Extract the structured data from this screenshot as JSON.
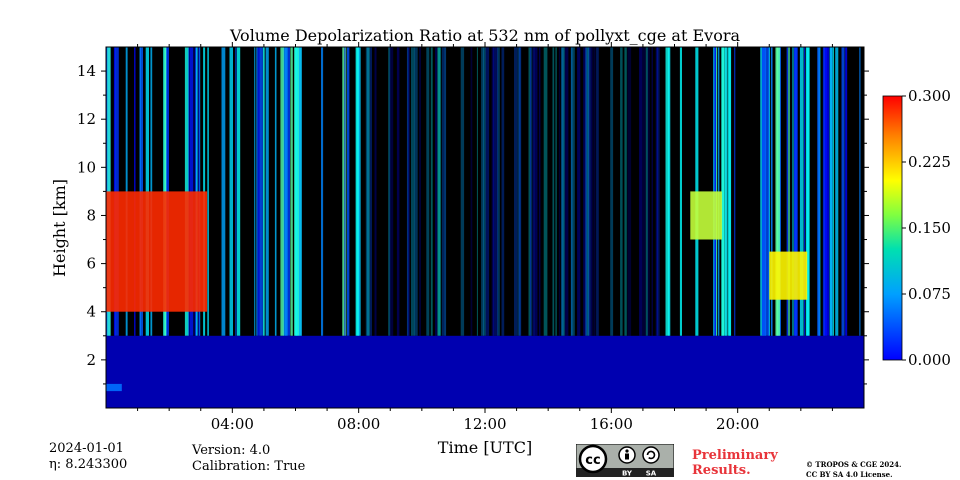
{
  "chart_data": {
    "type": "heatmap",
    "title": "Volume Depolarization Ratio at 532 nm of pollyxt_cge at Evora",
    "xlabel": "Time [UTC]",
    "ylabel": "Height [km]",
    "xlim_hours": [
      0,
      24
    ],
    "ylim_km": [
      0,
      15
    ],
    "x_ticks": [
      {
        "hour": 4,
        "label": "04:00"
      },
      {
        "hour": 8,
        "label": "08:00"
      },
      {
        "hour": 12,
        "label": "12:00"
      },
      {
        "hour": 16,
        "label": "16:00"
      },
      {
        "hour": 20,
        "label": "20:00"
      }
    ],
    "y_ticks": [
      {
        "value": 2,
        "label": "2"
      },
      {
        "value": 4,
        "label": "4"
      },
      {
        "value": 6,
        "label": "6"
      },
      {
        "value": 8,
        "label": "8"
      },
      {
        "value": 10,
        "label": "10"
      },
      {
        "value": 12,
        "label": "12"
      },
      {
        "value": 14,
        "label": "14"
      }
    ],
    "colorbar": {
      "range": [
        0.0,
        0.3
      ],
      "colormap": "jet",
      "ticks": [
        {
          "value": 0.0,
          "label": "0.000"
        },
        {
          "value": 0.075,
          "label": "0.075"
        },
        {
          "value": 0.15,
          "label": "0.150"
        },
        {
          "value": 0.225,
          "label": "0.225"
        },
        {
          "value": 0.3,
          "label": "0.300"
        }
      ]
    },
    "features": [
      {
        "name": "boundary layer",
        "hours": [
          0,
          24
        ],
        "height_km": [
          0,
          3
        ],
        "value": 0.02
      },
      {
        "name": "aerosol layer",
        "hours": [
          0,
          0.5
        ],
        "height_km": [
          0.7,
          1.0
        ],
        "value": 0.07
      },
      {
        "name": "cirrus cloud",
        "hours": [
          0,
          3.2
        ],
        "height_km": [
          4,
          9
        ],
        "value": 0.25
      },
      {
        "name": "cirrus cloud",
        "hours": [
          18.5,
          19.5
        ],
        "height_km": [
          7,
          9
        ],
        "value": 0.17
      },
      {
        "name": "cirrus cloud",
        "hours": [
          21,
          22.2
        ],
        "height_km": [
          4.5,
          6.5
        ],
        "value": 0.19
      },
      {
        "name": "signal noise",
        "hours": [
          8,
          17.5
        ],
        "height_km": [
          2.5,
          15
        ],
        "value": null
      }
    ]
  },
  "info": {
    "date": "2024-01-01",
    "eta": "η: 8.243300",
    "version": "Version: 4.0",
    "calibration": "Calibration: True"
  },
  "license": {
    "cc_label": "cc",
    "by_label": "BY",
    "sa_label": "SA",
    "preliminary_line1": "Preliminary",
    "preliminary_line2": "Results.",
    "copyright_line1": "© TROPOS & CGE 2024.",
    "copyright_line2": "CC BY SA 4.0 License."
  },
  "colors": {
    "background": "#ffffff",
    "preliminary_red": "#e8343a",
    "badge_grey": "#aab0aa",
    "badge_dark": "#222222"
  }
}
